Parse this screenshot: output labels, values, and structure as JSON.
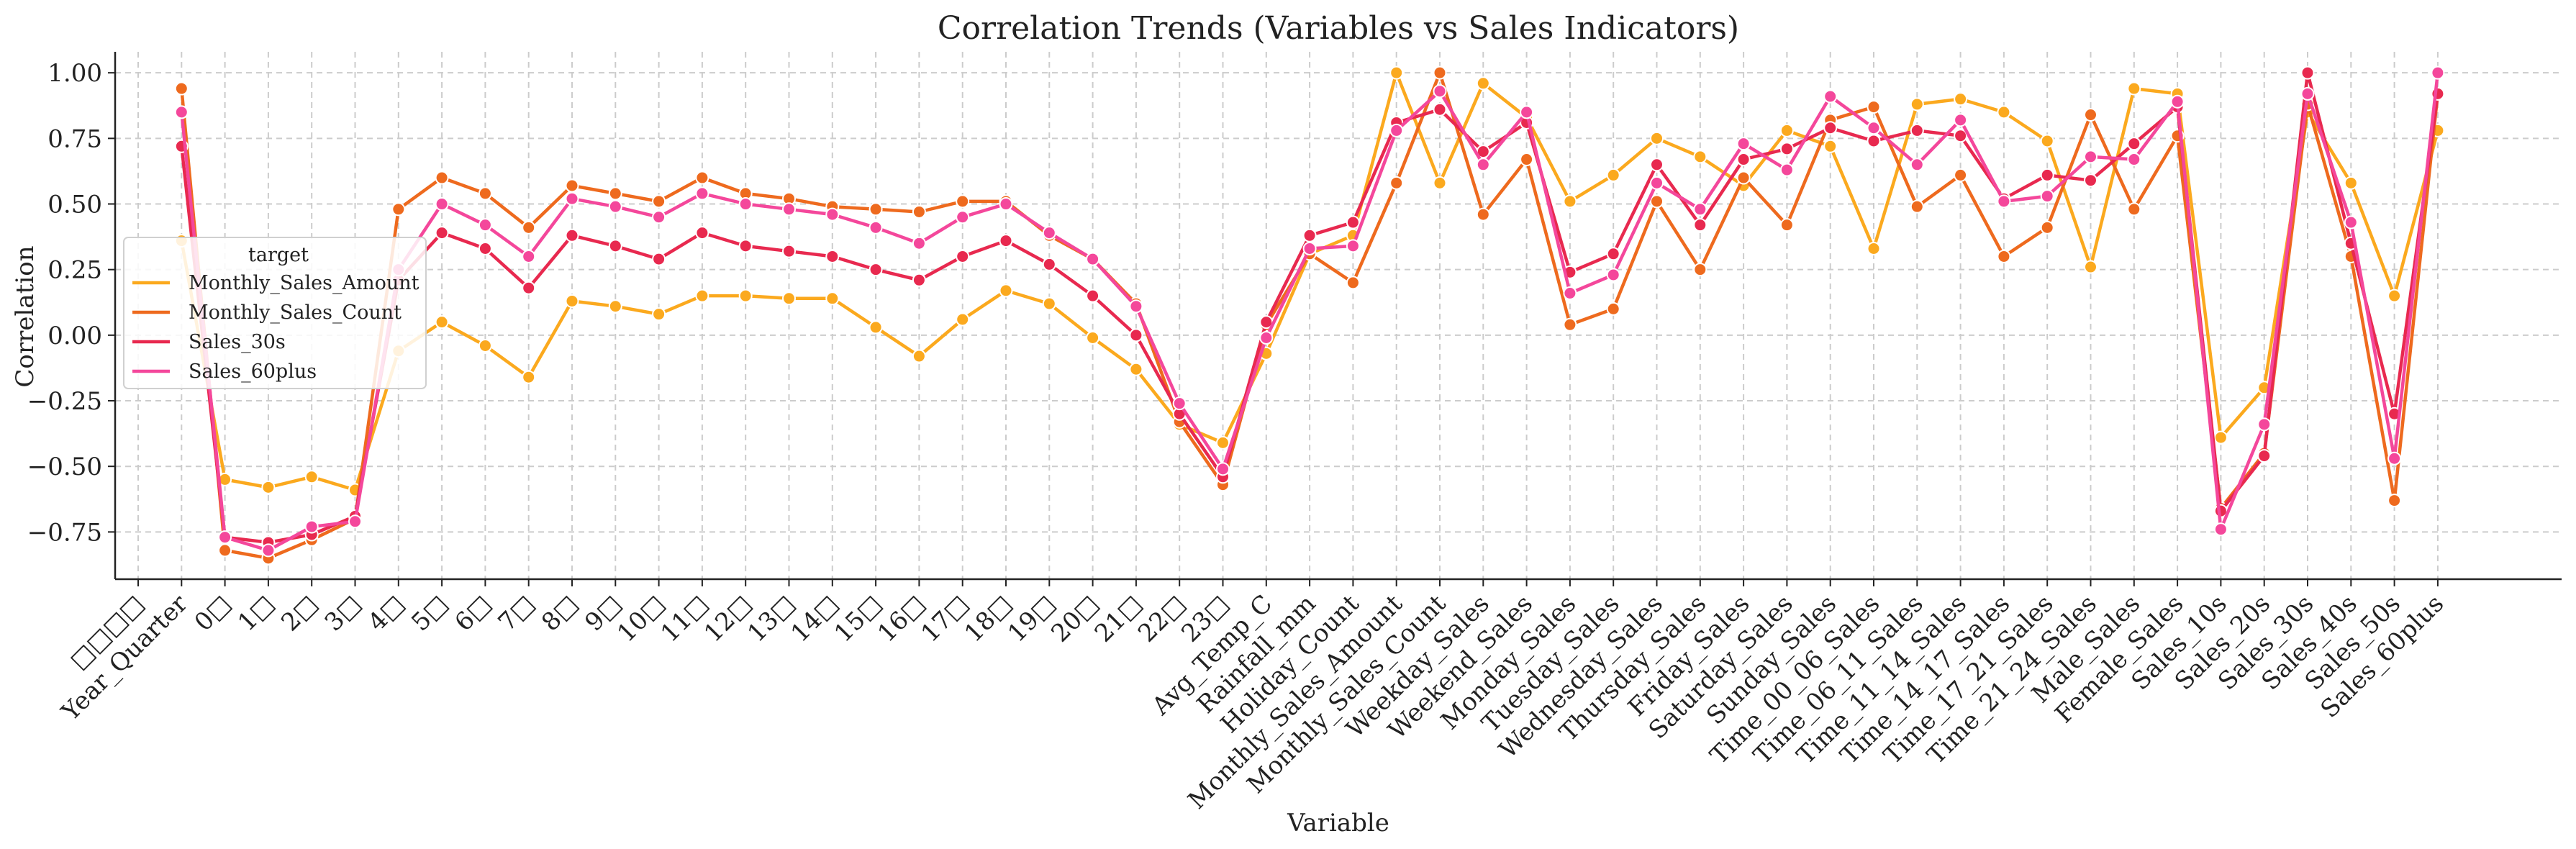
{
  "chart_data": {
    "type": "line",
    "title": "Correlation Trends (Variables vs Sales Indicators)",
    "xlabel": "Variable",
    "ylabel": "Correlation",
    "ylim": [
      -0.93,
      1.08
    ],
    "yticks": [
      -0.75,
      -0.5,
      -0.25,
      0.0,
      0.25,
      0.5,
      0.75,
      1.0
    ],
    "ytick_labels": [
      "−0.75",
      "−0.50",
      "−0.25",
      "0.00",
      "0.25",
      "0.50",
      "0.75",
      "1.00"
    ],
    "grid": true,
    "legend_title": "target",
    "legend_placement": "center-left",
    "categories": [
      "□□□□",
      "Year_Quarter",
      "0□",
      "1□",
      "2□",
      "3□",
      "4□",
      "5□",
      "6□",
      "7□",
      "8□",
      "9□",
      "10□",
      "11□",
      "12□",
      "13□",
      "14□",
      "15□",
      "16□",
      "17□",
      "18□",
      "19□",
      "20□",
      "21□",
      "22□",
      "23□",
      "Avg_Temp_C",
      "Rainfall_mm",
      "Holiday_Count",
      "Monthly_Sales_Amount",
      "Monthly_Sales_Count",
      "Weekday_Sales",
      "Weekend_Sales",
      "Monday_Sales",
      "Tuesday_Sales",
      "Wednesday_Sales",
      "Thursday_Sales",
      "Friday_Sales",
      "Saturday_Sales",
      "Sunday_Sales",
      "Time_00_06_Sales",
      "Time_06_11_Sales",
      "Time_11_14_Sales",
      "Time_14_17_Sales",
      "Time_17_21_Sales",
      "Time_21_24_Sales",
      "Male_Sales",
      "Female_Sales",
      "Sales_10s",
      "Sales_20s",
      "Sales_30s",
      "Sales_40s",
      "Sales_50s",
      "Sales_60plus"
    ],
    "series": [
      {
        "name": "Monthly_Sales_Amount",
        "color": "#FBA91E",
        "values": [
          null,
          0.36,
          -0.55,
          -0.58,
          -0.54,
          -0.59,
          -0.06,
          0.05,
          -0.04,
          -0.16,
          0.13,
          0.11,
          0.08,
          0.15,
          0.15,
          0.14,
          0.14,
          0.03,
          -0.08,
          0.06,
          0.17,
          0.12,
          -0.01,
          -0.13,
          -0.34,
          -0.41,
          -0.07,
          0.31,
          0.38,
          1.0,
          0.58,
          0.96,
          0.83,
          0.51,
          0.61,
          0.75,
          0.68,
          0.57,
          0.78,
          0.72,
          0.33,
          0.88,
          0.9,
          0.85,
          0.74,
          0.26,
          0.94,
          0.92,
          -0.39,
          -0.2,
          0.85,
          0.58,
          0.15,
          0.78
        ]
      },
      {
        "name": "Monthly_Sales_Count",
        "color": "#EE6A1E",
        "values": [
          null,
          0.94,
          -0.82,
          -0.85,
          -0.78,
          -0.7,
          0.48,
          0.6,
          0.54,
          0.41,
          0.57,
          0.54,
          0.51,
          0.6,
          0.54,
          0.52,
          0.49,
          0.48,
          0.47,
          0.51,
          0.51,
          0.38,
          0.29,
          0.12,
          -0.33,
          -0.57,
          0.04,
          0.31,
          0.2,
          0.58,
          1.0,
          0.46,
          0.67,
          0.04,
          0.1,
          0.51,
          0.25,
          0.6,
          0.42,
          0.82,
          0.87,
          0.49,
          0.61,
          0.3,
          0.41,
          0.84,
          0.48,
          0.76,
          -0.66,
          -0.45,
          0.88,
          0.3,
          -0.63,
          0.92
        ]
      },
      {
        "name": "Sales_30s",
        "color": "#E8294F",
        "values": [
          null,
          0.72,
          -0.77,
          -0.79,
          -0.76,
          -0.69,
          0.21,
          0.39,
          0.33,
          0.18,
          0.38,
          0.34,
          0.29,
          0.39,
          0.34,
          0.32,
          0.3,
          0.25,
          0.21,
          0.3,
          0.36,
          0.27,
          0.15,
          0.0,
          -0.3,
          -0.54,
          0.05,
          0.38,
          0.43,
          0.81,
          0.86,
          0.7,
          0.81,
          0.24,
          0.31,
          0.65,
          0.42,
          0.67,
          0.71,
          0.79,
          0.74,
          0.78,
          0.76,
          0.52,
          0.61,
          0.59,
          0.73,
          0.87,
          -0.67,
          -0.46,
          1.0,
          0.35,
          -0.3,
          0.92
        ]
      },
      {
        "name": "Sales_60plus",
        "color": "#F4479B",
        "values": [
          null,
          0.85,
          -0.77,
          -0.82,
          -0.73,
          -0.71,
          0.25,
          0.5,
          0.42,
          0.3,
          0.52,
          0.49,
          0.45,
          0.54,
          0.5,
          0.48,
          0.46,
          0.41,
          0.35,
          0.45,
          0.5,
          0.39,
          0.29,
          0.11,
          -0.26,
          -0.51,
          -0.01,
          0.33,
          0.34,
          0.78,
          0.93,
          0.65,
          0.85,
          0.16,
          0.23,
          0.58,
          0.48,
          0.73,
          0.63,
          0.91,
          0.79,
          0.65,
          0.82,
          0.51,
          0.53,
          0.68,
          0.67,
          0.89,
          -0.74,
          -0.34,
          0.92,
          0.43,
          -0.47,
          1.0
        ]
      }
    ]
  }
}
